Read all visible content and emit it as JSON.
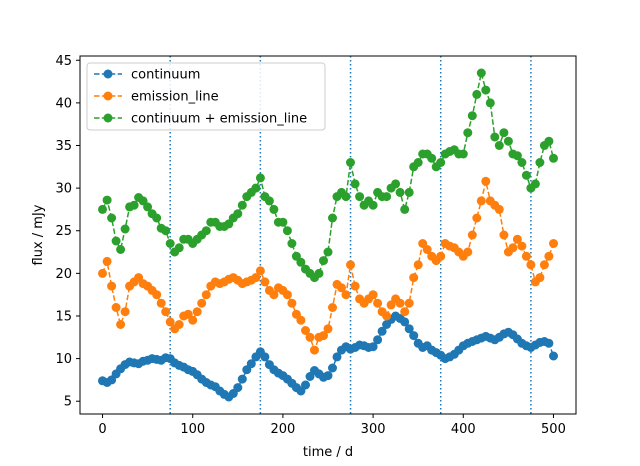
{
  "chart_data": {
    "type": "line",
    "xlabel": "time / d",
    "ylabel": "flux / mJy",
    "xlim": [
      -25,
      525
    ],
    "ylim": [
      3.5,
      45.5
    ],
    "xticks": [
      0,
      100,
      200,
      300,
      400,
      500
    ],
    "yticks": [
      5,
      10,
      15,
      20,
      25,
      30,
      35,
      40,
      45
    ],
    "grid": false,
    "legend_position": "top-left",
    "vlines": [
      75,
      175,
      275,
      375,
      475
    ],
    "vline_color": "#1f77b4",
    "series": [
      {
        "name": "continuum",
        "color": "#1f77b4",
        "x": [
          0,
          5,
          10,
          15,
          20,
          25,
          30,
          35,
          40,
          45,
          50,
          55,
          60,
          65,
          70,
          75,
          80,
          85,
          90,
          95,
          100,
          105,
          110,
          115,
          120,
          125,
          130,
          135,
          140,
          145,
          150,
          155,
          160,
          165,
          170,
          175,
          180,
          185,
          190,
          195,
          200,
          205,
          210,
          215,
          220,
          225,
          230,
          235,
          240,
          245,
          250,
          255,
          260,
          265,
          270,
          275,
          280,
          285,
          290,
          295,
          300,
          305,
          310,
          315,
          320,
          325,
          330,
          335,
          340,
          345,
          350,
          355,
          360,
          365,
          370,
          375,
          380,
          385,
          390,
          395,
          400,
          405,
          410,
          415,
          420,
          425,
          430,
          435,
          440,
          445,
          450,
          455,
          460,
          465,
          470,
          475,
          480,
          485,
          490,
          495,
          500
        ],
        "y": [
          7.4,
          7.2,
          7.5,
          8.2,
          8.8,
          9.3,
          9.6,
          9.5,
          9.4,
          9.7,
          9.8,
          10.0,
          9.9,
          9.8,
          10.1,
          10.0,
          9.5,
          9.2,
          9.0,
          8.7,
          8.5,
          8.1,
          7.6,
          7.2,
          6.9,
          6.7,
          6.2,
          5.8,
          5.5,
          5.9,
          6.6,
          7.6,
          8.7,
          9.4,
          10.2,
          10.8,
          10.2,
          9.3,
          8.7,
          8.3,
          8.0,
          7.6,
          7.1,
          6.6,
          6.2,
          6.9,
          7.9,
          8.6,
          8.2,
          7.8,
          8.0,
          8.9,
          10.2,
          11.0,
          11.4,
          11.1,
          11.3,
          11.6,
          11.5,
          11.3,
          11.4,
          12.2,
          13.2,
          14.0,
          14.6,
          15.0,
          14.7,
          14.3,
          13.5,
          12.7,
          11.8,
          11.3,
          11.5,
          11.0,
          10.7,
          10.4,
          10.0,
          10.2,
          10.5,
          11.0,
          11.5,
          11.8,
          12.0,
          12.2,
          12.4,
          12.6,
          12.4,
          12.2,
          12.5,
          12.9,
          13.1,
          12.8,
          12.3,
          11.8,
          11.5,
          11.3,
          11.6,
          11.9,
          12.0,
          11.8,
          10.3
        ]
      },
      {
        "name": "emission_line",
        "color": "#ff7f0e",
        "x": [
          0,
          5,
          10,
          15,
          20,
          25,
          30,
          35,
          40,
          45,
          50,
          55,
          60,
          65,
          70,
          75,
          80,
          85,
          90,
          95,
          100,
          105,
          110,
          115,
          120,
          125,
          130,
          135,
          140,
          145,
          150,
          155,
          160,
          165,
          170,
          175,
          180,
          185,
          190,
          195,
          200,
          205,
          210,
          215,
          220,
          225,
          230,
          235,
          240,
          245,
          250,
          255,
          260,
          265,
          270,
          275,
          280,
          285,
          290,
          295,
          300,
          305,
          310,
          315,
          320,
          325,
          330,
          335,
          340,
          345,
          350,
          355,
          360,
          365,
          370,
          375,
          380,
          385,
          390,
          395,
          400,
          405,
          410,
          415,
          420,
          425,
          430,
          435,
          440,
          445,
          450,
          455,
          460,
          465,
          470,
          475,
          480,
          485,
          490,
          495,
          500
        ],
        "y": [
          20.0,
          21.4,
          18.5,
          16.0,
          14.0,
          15.5,
          18.5,
          19.0,
          19.5,
          18.8,
          18.5,
          18.0,
          17.5,
          16.5,
          15.5,
          14.3,
          13.5,
          14.0,
          15.0,
          15.2,
          14.5,
          15.5,
          16.5,
          17.5,
          18.5,
          19.0,
          18.8,
          19.0,
          19.3,
          19.5,
          19.2,
          18.8,
          19.0,
          19.2,
          19.5,
          20.3,
          19.0,
          18.0,
          17.5,
          18.3,
          18.0,
          17.5,
          16.5,
          15.2,
          14.5,
          13.3,
          12.5,
          11.0,
          12.5,
          12.7,
          13.5,
          16.0,
          18.7,
          18.3,
          17.5,
          21.0,
          18.5,
          17.0,
          16.5,
          17.0,
          17.5,
          16.5,
          15.5,
          15.0,
          16.3,
          17.0,
          16.5,
          15.5,
          16.5,
          19.5,
          21.0,
          23.5,
          22.8,
          22.0,
          21.5,
          22.0,
          23.5,
          23.2,
          23.0,
          22.5,
          22.0,
          22.5,
          24.5,
          26.5,
          28.5,
          30.8,
          28.5,
          28.0,
          27.5,
          24.5,
          22.5,
          23.0,
          24.0,
          23.2,
          22.0,
          21.0,
          19.0,
          19.5,
          21.0,
          22.0,
          23.5
        ]
      },
      {
        "name": "continuum + emission_line",
        "color": "#2ca02c",
        "x": [
          0,
          5,
          10,
          15,
          20,
          25,
          30,
          35,
          40,
          45,
          50,
          55,
          60,
          65,
          70,
          75,
          80,
          85,
          90,
          95,
          100,
          105,
          110,
          115,
          120,
          125,
          130,
          135,
          140,
          145,
          150,
          155,
          160,
          165,
          170,
          175,
          180,
          185,
          190,
          195,
          200,
          205,
          210,
          215,
          220,
          225,
          230,
          235,
          240,
          245,
          250,
          255,
          260,
          265,
          270,
          275,
          280,
          285,
          290,
          295,
          300,
          305,
          310,
          315,
          320,
          325,
          330,
          335,
          340,
          345,
          350,
          355,
          360,
          365,
          370,
          375,
          380,
          385,
          390,
          395,
          400,
          405,
          410,
          415,
          420,
          425,
          430,
          435,
          440,
          445,
          450,
          455,
          460,
          465,
          470,
          475,
          480,
          485,
          490,
          495,
          500
        ],
        "y": [
          27.5,
          28.6,
          26.5,
          23.8,
          22.8,
          25.2,
          27.8,
          28.0,
          28.9,
          28.5,
          27.8,
          27.0,
          26.5,
          25.3,
          25.0,
          23.5,
          22.5,
          23.0,
          24.0,
          24.0,
          23.5,
          24.0,
          24.5,
          25.0,
          26.0,
          26.0,
          25.5,
          25.5,
          25.8,
          26.5,
          27.0,
          28.0,
          29.0,
          29.5,
          30.0,
          31.2,
          29.0,
          28.5,
          27.5,
          26.0,
          26.0,
          25.0,
          23.5,
          22.0,
          21.3,
          20.5,
          20.0,
          19.5,
          20.0,
          21.5,
          22.5,
          26.5,
          29.0,
          29.5,
          29.0,
          33.0,
          30.5,
          29.0,
          28.0,
          28.5,
          28.0,
          29.5,
          29.0,
          29.0,
          30.0,
          30.5,
          29.5,
          27.5,
          29.5,
          32.5,
          33.0,
          34.0,
          34.0,
          33.5,
          32.5,
          33.0,
          34.0,
          34.3,
          34.5,
          34.0,
          34.0,
          36.5,
          38.5,
          41.0,
          43.5,
          41.5,
          40.0,
          36.0,
          35.0,
          36.5,
          35.5,
          34.0,
          33.8,
          33.0,
          31.5,
          30.0,
          30.5,
          33.0,
          35.0,
          35.5,
          33.5
        ]
      }
    ]
  }
}
